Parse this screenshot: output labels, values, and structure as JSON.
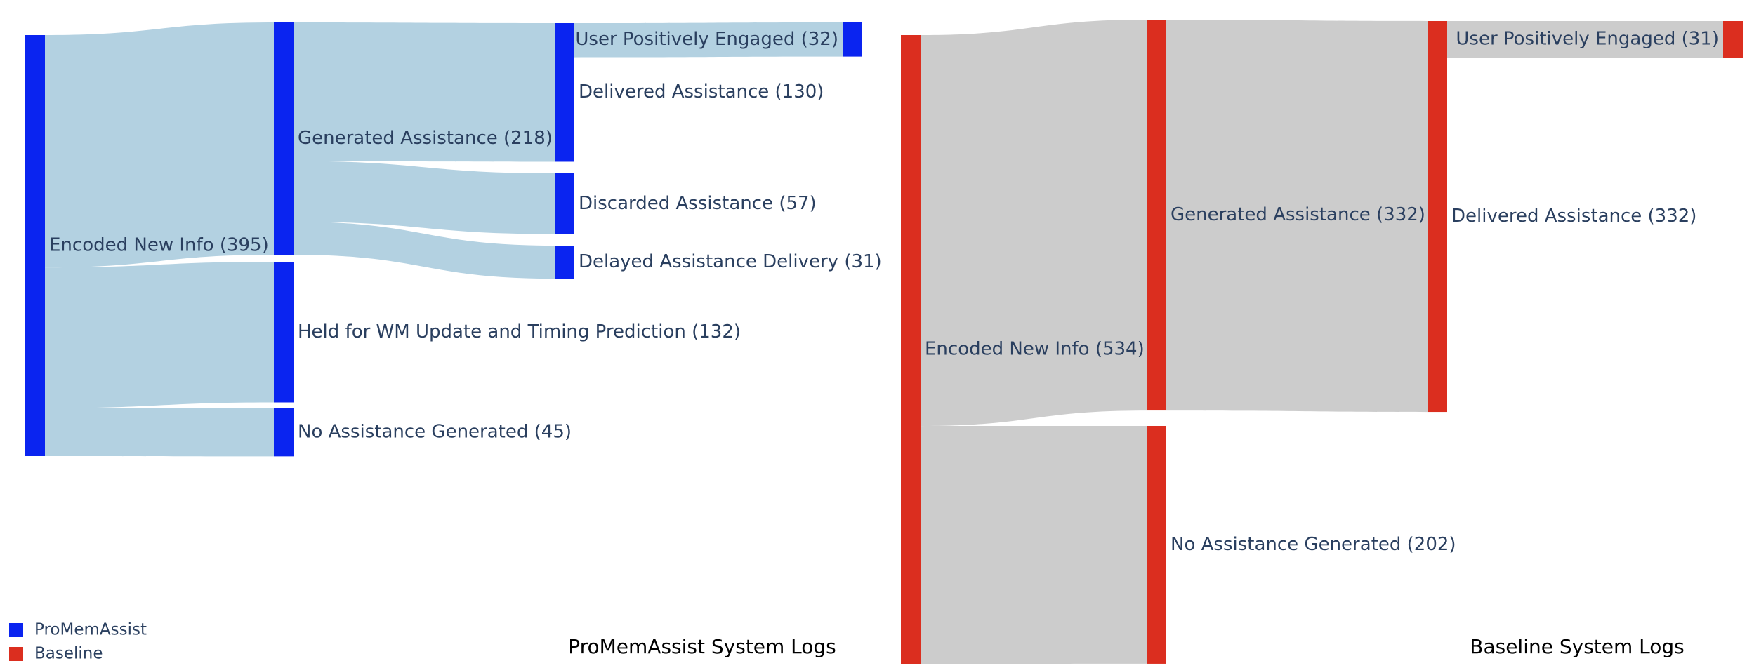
{
  "chart_data": [
    {
      "type": "sankey",
      "title": "ProMemAssist System Logs",
      "series": "ProMemAssist",
      "node_color": "#0a24f0",
      "link_color": "#b3d1e1",
      "nodes": [
        {
          "id": "enc",
          "label": "Encoded New Info (395)",
          "value": 395,
          "stage": 0
        },
        {
          "id": "gen",
          "label": "Generated Assistance (218)",
          "value": 218,
          "stage": 1
        },
        {
          "id": "held",
          "label": "Held for WM Update and Timing Prediction (132)",
          "value": 132,
          "stage": 1
        },
        {
          "id": "noasst",
          "label": "No Assistance Generated (45)",
          "value": 45,
          "stage": 1
        },
        {
          "id": "deliv",
          "label": "Delivered Assistance (130)",
          "value": 130,
          "stage": 2
        },
        {
          "id": "disc",
          "label": "Discarded Assistance (57)",
          "value": 57,
          "stage": 2
        },
        {
          "id": "delay",
          "label": "Delayed Assistance Delivery (31)",
          "value": 31,
          "stage": 2
        },
        {
          "id": "upe",
          "label": "User Positively Engaged (32)",
          "value": 32,
          "stage": 3
        }
      ],
      "links": [
        {
          "source": "enc",
          "target": "gen",
          "value": 218
        },
        {
          "source": "enc",
          "target": "held",
          "value": 132
        },
        {
          "source": "enc",
          "target": "noasst",
          "value": 45
        },
        {
          "source": "gen",
          "target": "deliv",
          "value": 130
        },
        {
          "source": "gen",
          "target": "disc",
          "value": 57
        },
        {
          "source": "gen",
          "target": "delay",
          "value": 31
        },
        {
          "source": "deliv",
          "target": "upe",
          "value": 32
        }
      ]
    },
    {
      "type": "sankey",
      "title": "Baseline System Logs",
      "series": "Baseline",
      "node_color": "#db2e1f",
      "link_color": "#cccccc",
      "nodes": [
        {
          "id": "enc",
          "label": "Encoded New Info (534)",
          "value": 534,
          "stage": 0
        },
        {
          "id": "gen",
          "label": "Generated Assistance (332)",
          "value": 332,
          "stage": 1
        },
        {
          "id": "noasst",
          "label": "No Assistance Generated (202)",
          "value": 202,
          "stage": 1
        },
        {
          "id": "deliv",
          "label": "Delivered Assistance (332)",
          "value": 332,
          "stage": 2
        },
        {
          "id": "upe",
          "label": "User Positively Engaged (31)",
          "value": 31,
          "stage": 3
        }
      ],
      "links": [
        {
          "source": "enc",
          "target": "gen",
          "value": 332
        },
        {
          "source": "enc",
          "target": "noasst",
          "value": 202
        },
        {
          "source": "gen",
          "target": "deliv",
          "value": 332
        },
        {
          "source": "deliv",
          "target": "upe",
          "value": 31
        }
      ]
    }
  ],
  "legend": {
    "placement": "bottom-left",
    "items": [
      {
        "label": "ProMemAssist",
        "color": "#0a24f0"
      },
      {
        "label": "Baseline",
        "color": "#db2e1f"
      }
    ]
  }
}
